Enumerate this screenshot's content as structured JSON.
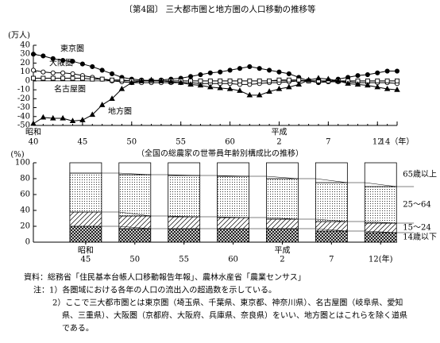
{
  "chart_data": [
    {
      "type": "line",
      "title": "〔第4図〕 三大都市圏と地方圏の人口移動の推移等",
      "y_label": "(万人)",
      "x": [
        40,
        41,
        42,
        43,
        44,
        45,
        46,
        47,
        48,
        49,
        50,
        51,
        52,
        53,
        54,
        55,
        56,
        57,
        58,
        59,
        60,
        61,
        62,
        63,
        64,
        65,
        66,
        67,
        68,
        69,
        70,
        71,
        72,
        73,
        74,
        75,
        76,
        77
      ],
      "xlim": [
        40,
        77
      ],
      "xticks": [
        40,
        45,
        50,
        55,
        60,
        {
          "value": 65,
          "label": "2"
        },
        {
          "value": 70,
          "label": "7"
        },
        {
          "value": 75,
          "label": "12"
        },
        {
          "value": 77,
          "label": "14（年）"
        }
      ],
      "x_era_labels": [
        {
          "value": 40,
          "label": "昭和"
        },
        {
          "value": 65,
          "label": "平成"
        }
      ],
      "ylim": [
        -50,
        40
      ],
      "yticks": [
        40,
        30,
        20,
        10,
        0,
        -10,
        -20,
        -30,
        -40,
        -50
      ],
      "series": [
        {
          "name": "東京圏",
          "color": "#000",
          "marker": "circle-filled",
          "values": [
            30,
            28,
            25,
            23,
            22,
            19,
            16,
            12,
            8,
            4,
            2,
            1,
            0,
            1,
            2,
            3,
            5,
            7,
            9,
            10,
            12,
            14,
            16,
            14,
            12,
            10,
            8,
            4,
            0,
            -2,
            -1,
            2,
            4,
            6,
            7,
            9,
            11,
            11
          ]
        },
        {
          "name": "大阪圏",
          "color": "#000",
          "marker": "circle-open",
          "values": [
            12,
            10,
            9,
            9,
            8,
            6,
            4,
            2,
            0,
            -1,
            -2,
            -2,
            -2,
            -2,
            -2,
            -2,
            -2,
            -3,
            -3,
            -3,
            -3,
            -4,
            -4,
            -3,
            -2,
            -2,
            -1,
            0,
            0,
            0,
            -1,
            -1,
            -1,
            -2,
            -2,
            -2,
            -2,
            -3
          ]
        },
        {
          "name": "名古屋圏",
          "color": "#000",
          "marker": "square-open",
          "values": [
            3,
            3,
            3,
            3,
            3,
            3,
            2,
            2,
            1,
            1,
            0,
            0,
            0,
            0,
            0,
            0,
            0,
            0,
            0,
            0,
            0,
            0,
            0,
            0,
            0,
            1,
            1,
            1,
            0,
            0,
            0,
            0,
            0,
            0,
            0,
            0,
            0,
            0
          ]
        },
        {
          "name": "地方圏",
          "color": "#000",
          "marker": "triangle-filled",
          "values": [
            -48,
            -41,
            -42,
            -42,
            -45,
            -44,
            -38,
            -27,
            -20,
            -9,
            -2,
            0,
            1,
            0,
            -1,
            -2,
            -4,
            -5,
            -7,
            -8,
            -9,
            -11,
            -16,
            -16,
            -12,
            -9,
            -7,
            -4,
            1,
            3,
            2,
            0,
            -3,
            -4,
            -5,
            -7,
            -9,
            -10
          ]
        }
      ]
    },
    {
      "type": "stacked-bar",
      "title": "（全国の総農家の世帯員年齢別構成比の推移）",
      "y_label": "(%)",
      "categories": [
        "45",
        "50",
        "55",
        "60",
        "2",
        "7",
        "12(年)"
      ],
      "category_eras": [
        "昭和",
        null,
        null,
        null,
        "平成",
        null,
        null
      ],
      "ylim": [
        0,
        100
      ],
      "yticks": [
        0,
        20,
        40,
        60,
        80,
        100
      ],
      "series": [
        {
          "name": "14歳以下",
          "color": "#000",
          "pattern": "crosshatch",
          "values": [
            20,
            17,
            17,
            17,
            17,
            14,
            12
          ]
        },
        {
          "name": "15～24",
          "color": "#000",
          "pattern": "diagonal",
          "values": [
            18,
            16,
            15,
            14,
            12,
            12,
            12
          ]
        },
        {
          "name": "25～64",
          "color": "#000",
          "pattern": "dots",
          "values": [
            49,
            52,
            52,
            52,
            51,
            49,
            46
          ]
        },
        {
          "name": "65歳以上",
          "color": "#000",
          "pattern": "none",
          "values": [
            13,
            15,
            16,
            17,
            20,
            25,
            30
          ]
        }
      ]
    }
  ],
  "notes": {
    "source": "資料：総務省「住民基本台帳人口移動報告年報」、農林水産省「農業センサス」",
    "note1": "注：1）各圏域における各年の人口の流出入の超過数を示している。",
    "note2_lines": [
      "2）ここで三大都市圏とは東京圏（埼玉県、千葉県、東京都、神奈川県）、名古屋圏（岐阜県、愛知",
      "県、三重県）、大阪圏（京都府、大阪府、兵庫県、奈良県）をいい、地方圏とはこれらを除く道県",
      "である。"
    ]
  }
}
